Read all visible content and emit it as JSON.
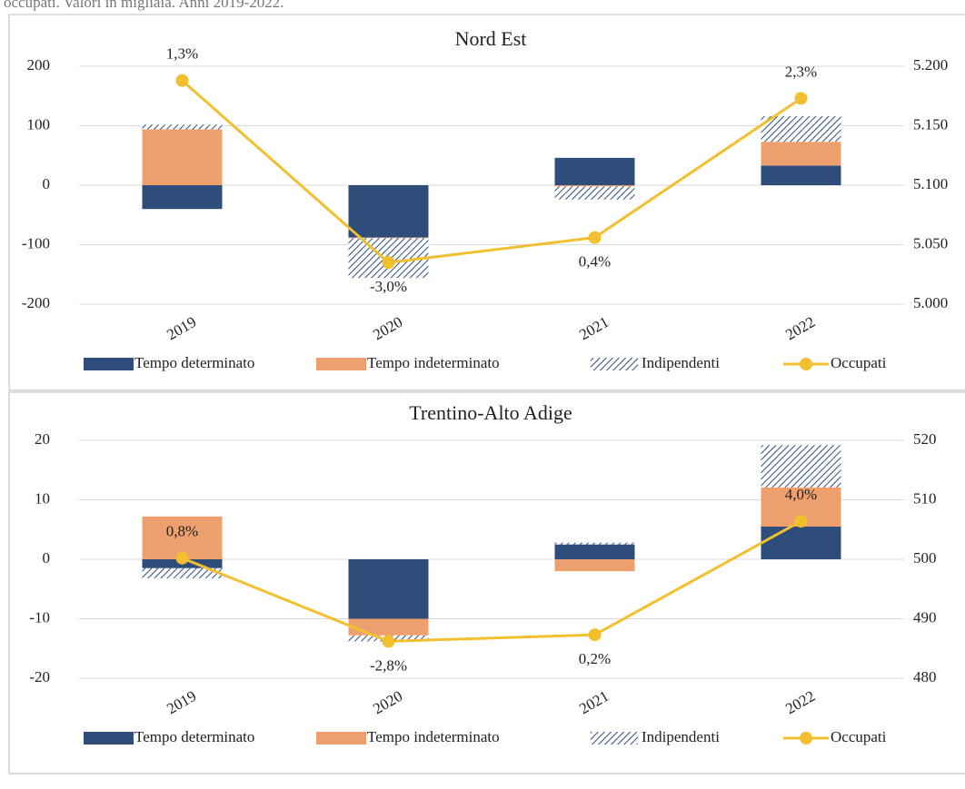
{
  "caption": "occupati. Valori in migliaia. Anni 2019-2022.",
  "chart_data": [
    {
      "type": "bar",
      "stacked": true,
      "title": "Nord Est",
      "categories": [
        "2019",
        "2020",
        "2021",
        "2022"
      ],
      "series": [
        {
          "name": "Tempo determinato",
          "color": "#2e4d7b",
          "pattern": "solid",
          "values": [
            -40,
            -88,
            46,
            33
          ]
        },
        {
          "name": "Tempo indeterminato",
          "color": "#eda06e",
          "pattern": "solid",
          "values": [
            94,
            -1,
            -2,
            40
          ]
        },
        {
          "name": "Indipendenti",
          "color": "#2e4d7b",
          "pattern": "hatch",
          "values": [
            8,
            -67,
            -22,
            43
          ]
        },
        {
          "name": "Occupati",
          "type": "line",
          "axis": "y2",
          "color": "#f2bf2f",
          "values": [
            5188,
            5035,
            5056,
            5173
          ]
        }
      ],
      "annotations": [
        "1,3%",
        "-3,0%",
        "0,4%",
        "2,3%"
      ],
      "ylim": [
        -200,
        200
      ],
      "yticks": [
        -200,
        -100,
        0,
        100,
        200
      ],
      "y2lim": [
        5000,
        5200
      ],
      "y2ticks": [
        {
          "value": 5000,
          "label": "5.000"
        },
        {
          "value": 5050,
          "label": "5.050"
        },
        {
          "value": 5100,
          "label": "5.100"
        },
        {
          "value": 5150,
          "label": "5.150"
        },
        {
          "value": 5200,
          "label": "5.200"
        }
      ],
      "grid": true,
      "legend": "bottom"
    },
    {
      "type": "bar",
      "stacked": true,
      "title": "Trentino-Alto Adige",
      "categories": [
        "2019",
        "2020",
        "2021",
        "2022"
      ],
      "series": [
        {
          "name": "Tempo determinato",
          "color": "#2e4d7b",
          "pattern": "solid",
          "values": [
            -1.5,
            -10,
            2.5,
            5.5
          ]
        },
        {
          "name": "Tempo indeterminato",
          "color": "#eda06e",
          "pattern": "solid",
          "values": [
            7.2,
            -2.8,
            -2,
            6.6
          ]
        },
        {
          "name": "Indipendenti",
          "color": "#2e4d7b",
          "pattern": "hatch",
          "values": [
            -1.7,
            -1,
            0.3,
            7.1
          ]
        },
        {
          "name": "Occupati",
          "type": "line",
          "axis": "y2",
          "color": "#f2bf2f",
          "values": [
            500.2,
            486.2,
            487.3,
            506.4
          ]
        }
      ],
      "annotations": [
        "0,8%",
        "-2,8%",
        "0,2%",
        "4,0%"
      ],
      "ylim": [
        -20,
        20
      ],
      "yticks": [
        -20,
        -10,
        0,
        10,
        20
      ],
      "y2lim": [
        480,
        520
      ],
      "y2ticks": [
        480,
        490,
        500,
        510,
        520
      ],
      "grid": true,
      "legend": "bottom"
    }
  ]
}
